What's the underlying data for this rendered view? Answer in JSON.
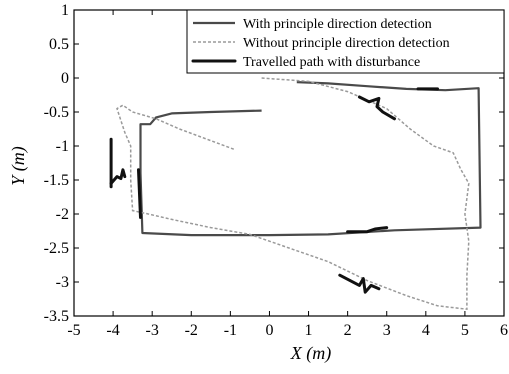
{
  "chart_data": {
    "type": "line",
    "title": "",
    "xlabel": "X (m)",
    "ylabel": "Y (m)",
    "xlim": [
      -5,
      6
    ],
    "ylim": [
      -3.5,
      1
    ],
    "xticks": [
      -5,
      -4,
      -3,
      -2,
      -1,
      0,
      1,
      2,
      3,
      4,
      5,
      6
    ],
    "yticks": [
      1,
      0.5,
      0,
      -0.5,
      -1,
      -1.5,
      -2,
      -2.5,
      -3,
      -3.5
    ],
    "grid": false,
    "legend_position": "top-right",
    "series": [
      {
        "name": "With principle direction detection",
        "color": "#4a4a4a",
        "style": "solid",
        "points": [
          [
            -0.2,
            -0.48
          ],
          [
            -1.5,
            -0.5
          ],
          [
            -2.5,
            -0.52
          ],
          [
            -2.9,
            -0.58
          ],
          [
            -3.05,
            -0.68
          ],
          [
            -3.3,
            -0.68
          ],
          [
            -3.3,
            -1.4
          ],
          [
            -3.25,
            -2.28
          ],
          [
            -2.0,
            -2.31
          ],
          [
            0.0,
            -2.31
          ],
          [
            1.5,
            -2.3
          ],
          [
            3.2,
            -2.24
          ],
          [
            5.4,
            -2.2
          ],
          [
            5.35,
            -0.15
          ],
          [
            4.5,
            -0.18
          ],
          [
            3.5,
            -0.16
          ],
          [
            2.5,
            -0.12
          ],
          [
            1.5,
            -0.08
          ],
          [
            0.7,
            -0.06
          ]
        ]
      },
      {
        "name": "Without principle direction detection",
        "color": "#9a9a9a",
        "style": "dashed",
        "points": [
          [
            -0.2,
            0.0
          ],
          [
            1.0,
            -0.05
          ],
          [
            2.0,
            -0.2
          ],
          [
            3.0,
            -0.45
          ],
          [
            3.6,
            -0.75
          ],
          [
            4.2,
            -1.0
          ],
          [
            4.7,
            -1.1
          ],
          [
            4.9,
            -1.35
          ],
          [
            5.1,
            -1.55
          ],
          [
            5.0,
            -2.0
          ],
          [
            5.1,
            -2.4
          ],
          [
            5.05,
            -2.9
          ],
          [
            5.05,
            -3.4
          ],
          [
            4.3,
            -3.35
          ],
          [
            3.5,
            -3.2
          ],
          [
            2.5,
            -2.98
          ],
          [
            1.5,
            -2.7
          ],
          [
            0.5,
            -2.5
          ],
          [
            -0.5,
            -2.3
          ],
          [
            -1.5,
            -2.2
          ],
          [
            -2.5,
            -2.08
          ],
          [
            -3.1,
            -2.0
          ],
          [
            -3.5,
            -1.95
          ],
          [
            -3.55,
            -1.5
          ],
          [
            -3.55,
            -1.0
          ],
          [
            -3.7,
            -0.8
          ],
          [
            -3.9,
            -0.45
          ],
          [
            -3.75,
            -0.4
          ],
          [
            -3.5,
            -0.5
          ],
          [
            -2.9,
            -0.6
          ],
          [
            -2.3,
            -0.75
          ],
          [
            -1.6,
            -0.9
          ],
          [
            -0.9,
            -1.05
          ]
        ]
      },
      {
        "name": "Travelled path with disturbance",
        "color": "#111111",
        "style": "solid",
        "segments": [
          [
            [
              -4.05,
              -0.9
            ],
            [
              -4.05,
              -1.6
            ]
          ],
          [
            [
              -4.05,
              -1.55
            ],
            [
              -3.9,
              -1.45
            ],
            [
              -3.8,
              -1.48
            ],
            [
              -3.75,
              -1.35
            ],
            [
              -3.7,
              -1.45
            ]
          ],
          [
            [
              -3.35,
              -1.35
            ],
            [
              -3.3,
              -2.05
            ]
          ],
          [
            [
              2.3,
              -0.28
            ],
            [
              2.55,
              -0.35
            ],
            [
              2.8,
              -0.3
            ],
            [
              2.75,
              -0.42
            ],
            [
              2.9,
              -0.5
            ],
            [
              3.2,
              -0.6
            ]
          ],
          [
            [
              1.8,
              -2.9
            ],
            [
              2.3,
              -3.05
            ],
            [
              2.4,
              -2.95
            ],
            [
              2.45,
              -3.15
            ],
            [
              2.6,
              -3.05
            ],
            [
              2.8,
              -3.1
            ]
          ],
          [
            [
              2.0,
              -2.26
            ],
            [
              2.5,
              -2.26
            ],
            [
              2.7,
              -2.22
            ],
            [
              3.0,
              -2.2
            ]
          ],
          [
            [
              3.8,
              -0.16
            ],
            [
              4.3,
              -0.16
            ]
          ]
        ]
      }
    ]
  }
}
